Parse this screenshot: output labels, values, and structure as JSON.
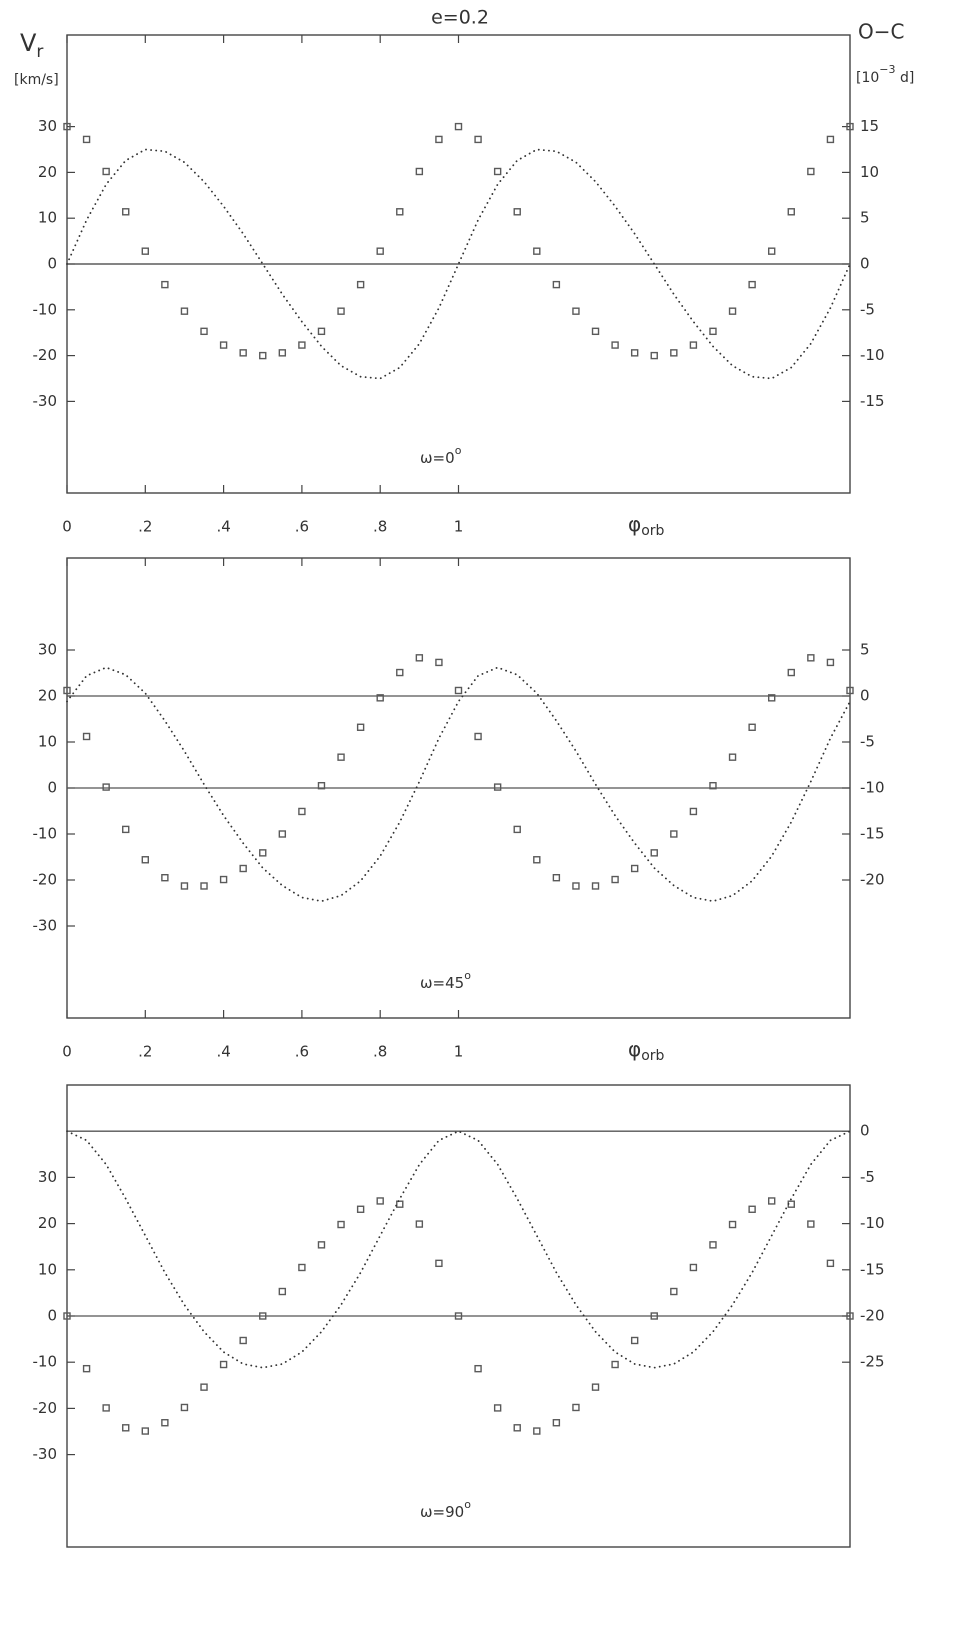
{
  "chart_data": [
    {
      "type": "rv-oc",
      "title": "e=0.2",
      "y_label": [
        "V",
        "r"
      ],
      "y_units": "[km/s]",
      "y2_label": "O−C",
      "y2_units": [
        "[10",
        "−3",
        " d]"
      ],
      "x_label": [
        "φ",
        "orb"
      ],
      "annotation": [
        "ω=0",
        "o"
      ],
      "x": [
        0,
        0.05,
        0.1,
        0.15,
        0.2,
        0.25,
        0.3,
        0.35,
        0.4,
        0.45,
        0.5,
        0.55,
        0.6,
        0.65,
        0.7,
        0.75,
        0.8,
        0.85,
        0.9,
        0.95,
        1,
        1.05,
        1.1,
        1.15,
        1.2,
        1.25,
        1.3,
        1.35,
        1.4,
        1.45,
        1.5,
        1.55,
        1.6,
        1.65,
        1.7,
        1.75,
        1.8,
        1.85,
        1.9,
        1.95,
        2
      ],
      "xlim": [
        0,
        2
      ],
      "xticks": [
        0,
        {
          "value": 0.2,
          "label": ".2"
        },
        {
          "value": 0.4,
          "label": ".4"
        },
        {
          "value": 0.6,
          "label": ".6"
        },
        {
          "value": 0.8,
          "label": ".8"
        },
        1
      ],
      "ylim": [
        -50,
        50
      ],
      "yticks": [
        30,
        20,
        10,
        0,
        -10,
        -20,
        -30
      ],
      "y2lim": [
        -25,
        25
      ],
      "y2ticks": [
        15,
        10,
        5,
        0,
        -5,
        -10,
        -15
      ],
      "zero_line": true,
      "series": [
        {
          "axis": "y",
          "marker": "square",
          "color": "#5a5a5a",
          "values": [
            30,
            27.2,
            20.2,
            11.4,
            2.8,
            -4.5,
            -10.3,
            -14.7,
            -17.7,
            -19.4,
            -20,
            -19.4,
            -17.7,
            -14.7,
            -10.3,
            -4.5,
            2.8,
            11.4,
            20.2,
            27.2,
            30,
            27.2,
            20.2,
            11.4,
            2.8,
            -4.5,
            -10.3,
            -14.7,
            -17.7,
            -19.4,
            -20,
            -19.4,
            -17.7,
            -14.7,
            -10.3,
            -4.5,
            2.8,
            11.4,
            20.2,
            27.2,
            30
          ]
        },
        {
          "axis": "y2",
          "marker": "dot",
          "color": "#333333",
          "values": [
            0,
            4.8,
            8.7,
            11.3,
            12.5,
            12.3,
            11.1,
            9,
            6.3,
            3.3,
            0,
            -3.3,
            -6.3,
            -9,
            -11.1,
            -12.3,
            -12.5,
            -11.3,
            -8.7,
            -4.8,
            0,
            4.8,
            8.7,
            11.3,
            12.5,
            12.3,
            11.1,
            9,
            6.3,
            3.3,
            0,
            -3.3,
            -6.3,
            -9,
            -11.1,
            -12.3,
            -12.5,
            -11.3,
            -8.7,
            -4.8,
            0
          ]
        }
      ]
    },
    {
      "type": "rv-oc",
      "x_label": [
        "φ",
        "orb"
      ],
      "annotation": [
        "ω=45",
        "o"
      ],
      "x": [
        0,
        0.05,
        0.1,
        0.15,
        0.2,
        0.25,
        0.3,
        0.35,
        0.4,
        0.45,
        0.5,
        0.55,
        0.6,
        0.65,
        0.7,
        0.75,
        0.8,
        0.85,
        0.9,
        0.95,
        1,
        1.05,
        1.1,
        1.15,
        1.2,
        1.25,
        1.3,
        1.35,
        1.4,
        1.45,
        1.5,
        1.55,
        1.6,
        1.65,
        1.7,
        1.75,
        1.8,
        1.85,
        1.9,
        1.95,
        2
      ],
      "xlim": [
        0,
        2
      ],
      "xticks": [
        0,
        {
          "value": 0.2,
          "label": ".2"
        },
        {
          "value": 0.4,
          "label": ".4"
        },
        {
          "value": 0.6,
          "label": ".6"
        },
        {
          "value": 0.8,
          "label": ".8"
        },
        1
      ],
      "ylim": [
        -50,
        50
      ],
      "yticks": [
        30,
        20,
        10,
        0,
        -10,
        -20,
        -30
      ],
      "y2lim": [
        -35,
        15
      ],
      "y2ticks": [
        5,
        0,
        -5,
        -10,
        -15,
        -20
      ],
      "zero_line": true,
      "series": [
        {
          "axis": "y",
          "marker": "square",
          "color": "#5a5a5a",
          "values": [
            21.2,
            11.2,
            0.2,
            -9,
            -15.6,
            -19.5,
            -21.3,
            -21.3,
            -19.9,
            -17.5,
            -14.1,
            -10,
            -5.1,
            0.5,
            6.7,
            13.2,
            19.6,
            25.1,
            28.3,
            27.3,
            21.2,
            11.2,
            0.2,
            -9,
            -15.6,
            -19.5,
            -21.3,
            -21.3,
            -19.9,
            -17.5,
            -14.1,
            -10,
            -5.1,
            0.5,
            6.7,
            13.2,
            19.6,
            25.1,
            28.3,
            27.3,
            21.2
          ]
        },
        {
          "axis": "y2",
          "marker": "dot",
          "color": "#333333",
          "values": [
            -0.6,
            2.2,
            3.1,
            2.3,
            0.3,
            -2.7,
            -6,
            -9.6,
            -13,
            -16,
            -18.7,
            -20.6,
            -21.9,
            -22.3,
            -21.7,
            -20.1,
            -17.4,
            -13.7,
            -9.3,
            -4.6,
            -0.6,
            2.2,
            3.1,
            2.3,
            0.3,
            -2.7,
            -6,
            -9.6,
            -13,
            -16,
            -18.7,
            -20.6,
            -21.9,
            -22.3,
            -21.7,
            -20.1,
            -17.4,
            -13.7,
            -9.3,
            -4.6,
            -0.6
          ]
        }
      ]
    },
    {
      "type": "rv-oc",
      "annotation": [
        "ω=90",
        "o"
      ],
      "x": [
        0,
        0.05,
        0.1,
        0.15,
        0.2,
        0.25,
        0.3,
        0.35,
        0.4,
        0.45,
        0.5,
        0.55,
        0.6,
        0.65,
        0.7,
        0.75,
        0.8,
        0.85,
        0.9,
        0.95,
        1,
        1.05,
        1.1,
        1.15,
        1.2,
        1.25,
        1.3,
        1.35,
        1.4,
        1.45,
        1.5,
        1.55,
        1.6,
        1.65,
        1.7,
        1.75,
        1.8,
        1.85,
        1.9,
        1.95,
        2
      ],
      "xlim": [
        0,
        2
      ],
      "ylim": [
        -50,
        50
      ],
      "yticks": [
        30,
        20,
        10,
        0,
        -10,
        -20,
        -30
      ],
      "y2lim": [
        -45,
        5
      ],
      "y2ticks": [
        0,
        -5,
        -10,
        -15,
        -20,
        -25
      ],
      "zero_line": true,
      "series": [
        {
          "axis": "y",
          "marker": "square",
          "color": "#5a5a5a",
          "values": [
            0,
            -11.4,
            -19.9,
            -24.2,
            -24.9,
            -23.1,
            -19.8,
            -15.4,
            -10.5,
            -5.3,
            0,
            5.3,
            10.5,
            15.4,
            19.8,
            23.1,
            24.9,
            24.2,
            19.9,
            11.4,
            0,
            -11.4,
            -19.9,
            -24.2,
            -24.9,
            -23.1,
            -19.8,
            -15.4,
            -10.5,
            -5.3,
            0,
            5.3,
            10.5,
            15.4,
            19.8,
            23.1,
            24.9,
            24.2,
            19.9,
            11.4,
            0
          ]
        },
        {
          "axis": "y2",
          "marker": "dot",
          "color": "#333333",
          "values": [
            0,
            -1,
            -3.6,
            -7.3,
            -11.3,
            -15.3,
            -18.8,
            -21.7,
            -23.9,
            -25.2,
            -25.6,
            -25.2,
            -23.9,
            -21.7,
            -18.8,
            -15.3,
            -11.3,
            -7.3,
            -3.6,
            -1,
            0,
            -1,
            -3.6,
            -7.3,
            -11.3,
            -15.3,
            -18.8,
            -21.7,
            -23.9,
            -25.2,
            -25.6,
            -25.2,
            -23.9,
            -21.7,
            -18.8,
            -15.3,
            -11.3,
            -7.3,
            -3.6,
            -1,
            0
          ]
        }
      ]
    }
  ]
}
